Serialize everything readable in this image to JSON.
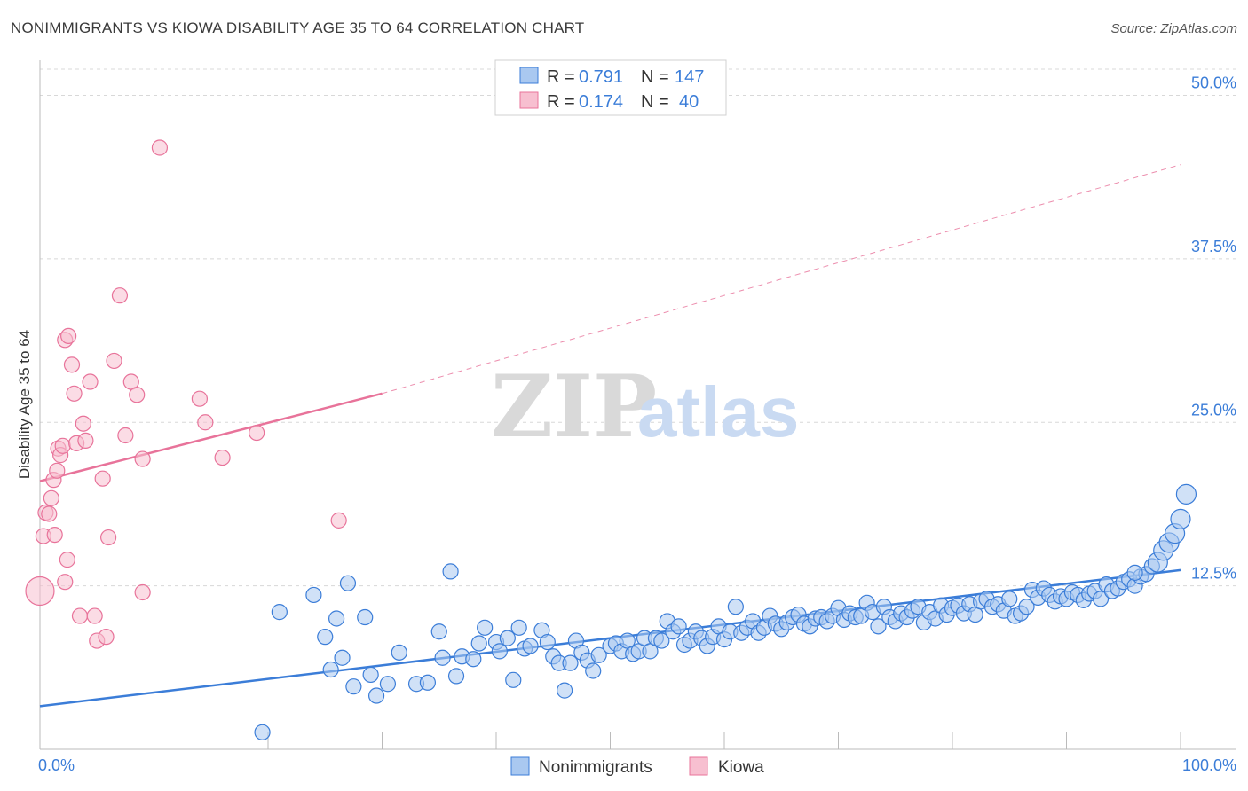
{
  "title": "NONIMMIGRANTS VS KIOWA DISABILITY AGE 35 TO 64 CORRELATION CHART",
  "source": "Source: ZipAtlas.com",
  "watermark": {
    "zip": "ZIP",
    "atlas": "atlas"
  },
  "colors": {
    "blue": "#3b7dd8",
    "blue_fill": "#a9c8f0",
    "pink": "#e8739a",
    "pink_fill": "#f7bfd0",
    "grid": "#d8d8d8"
  },
  "legend": {
    "rows": [
      {
        "r_label": "R =",
        "r_value": "0.791",
        "n_label": "N =",
        "n_value": "147"
      },
      {
        "r_label": "R =",
        "r_value": "0.174",
        "n_label": "N =",
        "n_value": "40"
      }
    ]
  },
  "bottom_legend": [
    "Nonimmigrants",
    "Kiowa"
  ],
  "chart_data": {
    "type": "scatter",
    "title": "NONIMMIGRANTS VS KIOWA DISABILITY AGE 35 TO 64 CORRELATION CHART",
    "xlabel": "",
    "ylabel": "Disability Age 35 to 64",
    "xlim": [
      0,
      100
    ],
    "ylim": [
      0,
      52
    ],
    "x_tick_labels": [
      "0.0%",
      "100.0%"
    ],
    "y_ticks": [
      12.5,
      25.0,
      37.5,
      50.0
    ],
    "y_tick_labels": [
      "12.5%",
      "25.0%",
      "37.5%",
      "50.0%"
    ],
    "grid": true,
    "legend_position": "top-center",
    "series": [
      {
        "name": "Nonimmigrants",
        "color": "#3b7dd8",
        "R": 0.791,
        "N": 147,
        "trend": {
          "x": [
            0,
            100
          ],
          "y": [
            3.3,
            13.7
          ]
        },
        "points": [
          [
            19.5,
            1.3
          ],
          [
            21,
            10.5
          ],
          [
            24,
            11.8
          ],
          [
            25,
            8.6
          ],
          [
            25.5,
            6.1
          ],
          [
            26,
            10
          ],
          [
            26.5,
            7
          ],
          [
            27,
            12.7
          ],
          [
            27.5,
            4.8
          ],
          [
            28.5,
            10.1
          ],
          [
            29,
            5.7
          ],
          [
            29.5,
            4.1
          ],
          [
            30.5,
            5
          ],
          [
            31.5,
            7.4
          ],
          [
            33,
            5
          ],
          [
            34,
            5.1
          ],
          [
            35,
            9
          ],
          [
            35.3,
            7
          ],
          [
            36,
            13.6
          ],
          [
            36.5,
            5.6
          ],
          [
            37,
            7.1
          ],
          [
            38,
            6.9
          ],
          [
            38.5,
            8.1
          ],
          [
            39,
            9.3
          ],
          [
            40,
            8.2
          ],
          [
            40.3,
            7.5
          ],
          [
            41,
            8.5
          ],
          [
            41.5,
            5.3
          ],
          [
            42,
            9.3
          ],
          [
            42.5,
            7.7
          ],
          [
            43,
            7.9
          ],
          [
            44,
            9.1
          ],
          [
            44.5,
            8.2
          ],
          [
            45,
            7.1
          ],
          [
            45.5,
            6.6
          ],
          [
            46,
            4.5
          ],
          [
            46.5,
            6.6
          ],
          [
            47,
            8.3
          ],
          [
            47.5,
            7.4
          ],
          [
            48,
            6.8
          ],
          [
            48.5,
            6
          ],
          [
            49,
            7.2
          ],
          [
            50,
            7.9
          ],
          [
            50.5,
            8.1
          ],
          [
            51,
            7.5
          ],
          [
            51.5,
            8.3
          ],
          [
            52,
            7.3
          ],
          [
            52.5,
            7.5
          ],
          [
            53,
            8.5
          ],
          [
            53.5,
            7.5
          ],
          [
            54,
            8.5
          ],
          [
            54.5,
            8.3
          ],
          [
            55,
            9.8
          ],
          [
            55.5,
            9
          ],
          [
            56,
            9.4
          ],
          [
            56.5,
            8
          ],
          [
            57,
            8.3
          ],
          [
            57.5,
            9
          ],
          [
            58,
            8.5
          ],
          [
            58.5,
            7.9
          ],
          [
            59,
            8.6
          ],
          [
            59.5,
            9.4
          ],
          [
            60,
            8.4
          ],
          [
            60.5,
            9
          ],
          [
            61,
            10.9
          ],
          [
            61.5,
            8.9
          ],
          [
            62,
            9.3
          ],
          [
            62.5,
            9.8
          ],
          [
            63,
            8.9
          ],
          [
            63.5,
            9.3
          ],
          [
            64,
            10.2
          ],
          [
            64.5,
            9.6
          ],
          [
            65,
            9.2
          ],
          [
            65.5,
            9.7
          ],
          [
            66,
            10.1
          ],
          [
            66.5,
            10.3
          ],
          [
            67,
            9.6
          ],
          [
            67.5,
            9.4
          ],
          [
            68,
            10
          ],
          [
            68.5,
            10.1
          ],
          [
            69,
            9.8
          ],
          [
            69.5,
            10.2
          ],
          [
            70,
            10.8
          ],
          [
            70.5,
            9.9
          ],
          [
            71,
            10.4
          ],
          [
            71.5,
            10.1
          ],
          [
            72,
            10.2
          ],
          [
            72.5,
            11.2
          ],
          [
            73,
            10.5
          ],
          [
            73.5,
            9.4
          ],
          [
            74,
            10.9
          ],
          [
            74.5,
            10.1
          ],
          [
            75,
            9.8
          ],
          [
            75.5,
            10.4
          ],
          [
            76,
            10.1
          ],
          [
            76.5,
            10.6
          ],
          [
            77,
            10.9
          ],
          [
            77.5,
            9.7
          ],
          [
            78,
            10.5
          ],
          [
            78.5,
            10
          ],
          [
            79,
            11
          ],
          [
            79.5,
            10.3
          ],
          [
            80,
            10.8
          ],
          [
            80.5,
            11
          ],
          [
            81,
            10.4
          ],
          [
            81.5,
            11.1
          ],
          [
            82,
            10.3
          ],
          [
            82.5,
            11.3
          ],
          [
            83,
            11.5
          ],
          [
            83.5,
            10.9
          ],
          [
            84,
            11.1
          ],
          [
            84.5,
            10.6
          ],
          [
            85,
            11.5
          ],
          [
            85.5,
            10.2
          ],
          [
            86,
            10.4
          ],
          [
            86.5,
            10.9
          ],
          [
            87,
            12.2
          ],
          [
            87.5,
            11.6
          ],
          [
            88,
            12.3
          ],
          [
            88.5,
            11.8
          ],
          [
            89,
            11.3
          ],
          [
            89.5,
            11.7
          ],
          [
            90,
            11.5
          ],
          [
            90.5,
            12
          ],
          [
            91,
            11.8
          ],
          [
            91.5,
            11.4
          ],
          [
            92,
            11.9
          ],
          [
            92.5,
            12.1
          ],
          [
            93,
            11.5
          ],
          [
            93.5,
            12.6
          ],
          [
            94,
            12.1
          ],
          [
            94.5,
            12.3
          ],
          [
            95,
            12.8
          ],
          [
            95.5,
            13
          ],
          [
            96,
            12.5
          ],
          [
            96.5,
            13.2
          ],
          [
            97,
            13.4
          ],
          [
            97.5,
            14
          ],
          [
            98,
            14.3
          ],
          [
            98.5,
            15.2
          ],
          [
            99,
            15.8
          ],
          [
            99.5,
            16.5
          ],
          [
            100,
            17.6
          ],
          [
            100.5,
            19.5
          ],
          [
            96,
            13.5
          ]
        ]
      },
      {
        "name": "Kiowa",
        "color": "#e8739a",
        "R": 0.174,
        "N": 40,
        "trend": {
          "x": [
            0,
            30
          ],
          "y": [
            20.5,
            27.2
          ]
        },
        "trend_extended": {
          "x": [
            30,
            100
          ],
          "y": [
            27.2,
            44.7
          ]
        },
        "points": [
          [
            0,
            12.1
          ],
          [
            0.3,
            16.3
          ],
          [
            0.5,
            18.1
          ],
          [
            0.8,
            18
          ],
          [
            1,
            19.2
          ],
          [
            1.2,
            20.6
          ],
          [
            1.3,
            16.4
          ],
          [
            1.5,
            21.3
          ],
          [
            1.6,
            23
          ],
          [
            1.8,
            22.5
          ],
          [
            2,
            23.2
          ],
          [
            2.2,
            12.8
          ],
          [
            2.4,
            14.5
          ],
          [
            2.2,
            31.3
          ],
          [
            2.5,
            31.6
          ],
          [
            2.8,
            29.4
          ],
          [
            3,
            27.2
          ],
          [
            3.2,
            23.4
          ],
          [
            3.5,
            10.2
          ],
          [
            3.8,
            24.9
          ],
          [
            4,
            23.6
          ],
          [
            4.4,
            28.1
          ],
          [
            4.8,
            10.2
          ],
          [
            5,
            8.3
          ],
          [
            5.5,
            20.7
          ],
          [
            5.8,
            8.6
          ],
          [
            6,
            16.2
          ],
          [
            6.5,
            29.7
          ],
          [
            7,
            34.7
          ],
          [
            7.5,
            24
          ],
          [
            8,
            28.1
          ],
          [
            8.5,
            27.1
          ],
          [
            9,
            22.2
          ],
          [
            9,
            12
          ],
          [
            10.5,
            46
          ],
          [
            14,
            26.8
          ],
          [
            14.5,
            25
          ],
          [
            16,
            22.3
          ],
          [
            19,
            24.2
          ],
          [
            26.2,
            17.5
          ]
        ]
      }
    ]
  }
}
